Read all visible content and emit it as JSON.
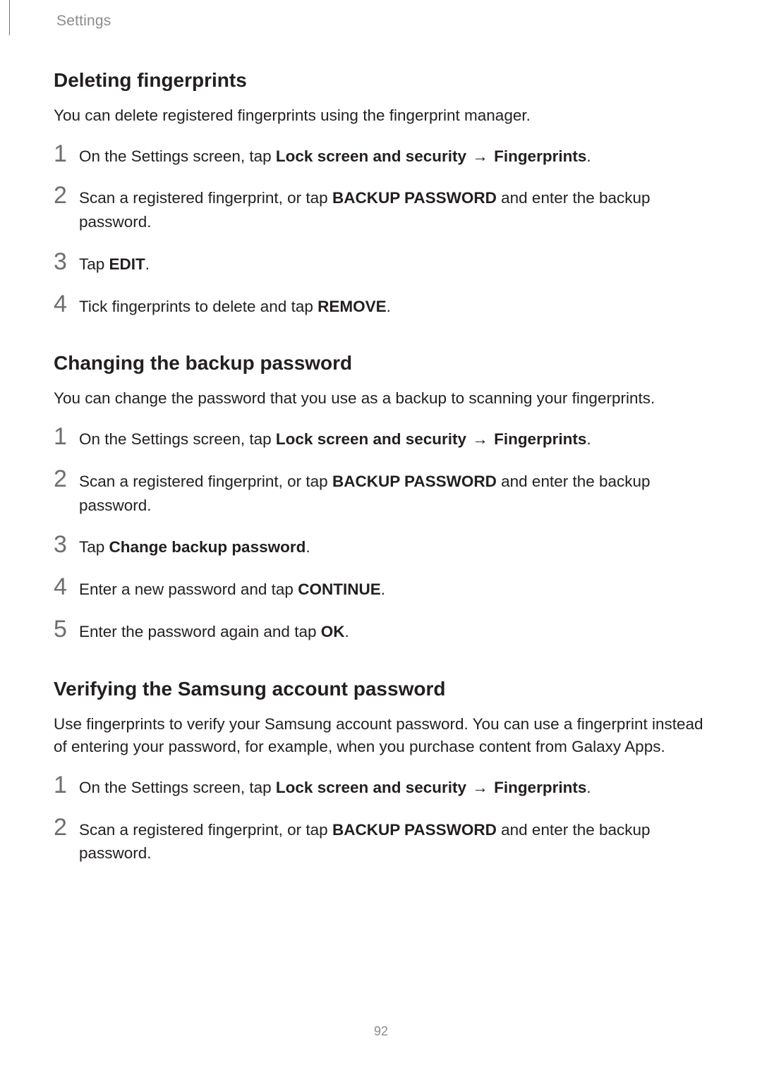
{
  "header": {
    "breadcrumb": "Settings"
  },
  "arrow": "→",
  "sections": [
    {
      "title": "Deleting fingerprints",
      "intro": "You can delete registered fingerprints using the fingerprint manager.",
      "steps": [
        {
          "n": "1",
          "pre": "On the Settings screen, tap ",
          "b1": "Lock screen and security",
          "mid": " ",
          "arrow": true,
          "b2": "Fingerprints",
          "post": "."
        },
        {
          "n": "2",
          "pre": "Scan a registered fingerprint, or tap ",
          "b1": "BACKUP PASSWORD",
          "post": " and enter the backup password."
        },
        {
          "n": "3",
          "pre": "Tap ",
          "b1": "EDIT",
          "post": "."
        },
        {
          "n": "4",
          "pre": "Tick fingerprints to delete and tap ",
          "b1": "REMOVE",
          "post": "."
        }
      ]
    },
    {
      "title": "Changing the backup password",
      "intro": "You can change the password that you use as a backup to scanning your fingerprints.",
      "steps": [
        {
          "n": "1",
          "pre": "On the Settings screen, tap ",
          "b1": "Lock screen and security",
          "mid": " ",
          "arrow": true,
          "b2": "Fingerprints",
          "post": "."
        },
        {
          "n": "2",
          "pre": "Scan a registered fingerprint, or tap ",
          "b1": "BACKUP PASSWORD",
          "post": " and enter the backup password."
        },
        {
          "n": "3",
          "pre": "Tap ",
          "b1": "Change backup password",
          "post": "."
        },
        {
          "n": "4",
          "pre": "Enter a new password and tap ",
          "b1": "CONTINUE",
          "post": "."
        },
        {
          "n": "5",
          "pre": "Enter the password again and tap ",
          "b1": "OK",
          "post": "."
        }
      ]
    },
    {
      "title": "Verifying the Samsung account password",
      "intro_parts": {
        "pre": "Use fingerprints to verify your Samsung account password. You can use a fingerprint instead of entering your password, for example, when you purchase content from ",
        "b": "Galaxy Apps",
        "post": "."
      },
      "steps": [
        {
          "n": "1",
          "pre": "On the Settings screen, tap ",
          "b1": "Lock screen and security",
          "mid": " ",
          "arrow": true,
          "b2": "Fingerprints",
          "post": "."
        },
        {
          "n": "2",
          "pre": "Scan a registered fingerprint, or tap ",
          "b1": "BACKUP PASSWORD",
          "post": " and enter the backup password."
        }
      ]
    }
  ],
  "page_number": "92"
}
